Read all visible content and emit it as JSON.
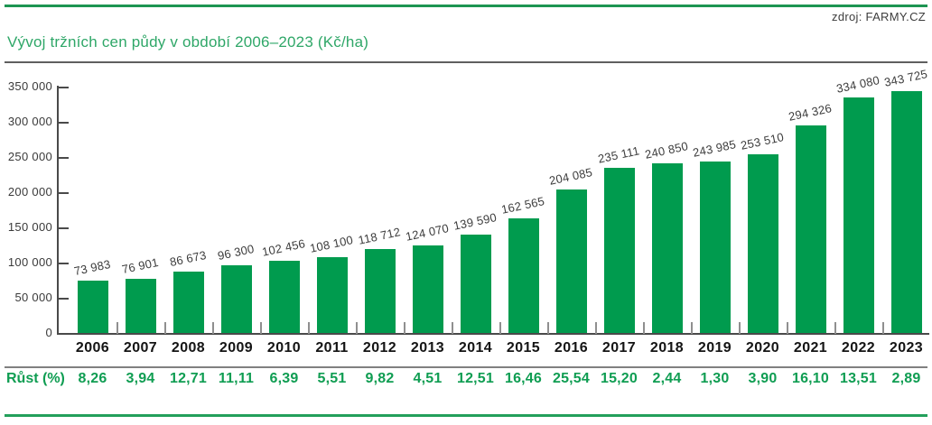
{
  "header": {
    "source": "zdroj: FARMY.CZ",
    "title": "Vývoj tržních cen půdy v období 2006–2023 (Kč/ha)"
  },
  "colors": {
    "bar_green": "#009b4e",
    "title_green": "#2fa768",
    "growth_green": "#0f9d52",
    "top_rule_green": "#1d9552",
    "bottom_rule_green": "#23a05b",
    "axis_gray": "#4a4a4a",
    "value_text": "#3d3d3d"
  },
  "chart_data": {
    "type": "bar",
    "title": "Vývoj tržních cen půdy v období 2006–2023 (Kč/ha)",
    "source": "zdroj: FARMY.CZ",
    "categories": [
      "2006",
      "2007",
      "2008",
      "2009",
      "2010",
      "2011",
      "2012",
      "2013",
      "2014",
      "2015",
      "2016",
      "2017",
      "2018",
      "2019",
      "2020",
      "2021",
      "2022",
      "2023"
    ],
    "values": [
      73983,
      76901,
      86673,
      96300,
      102456,
      108100,
      118712,
      124070,
      139590,
      162565,
      204085,
      235111,
      240850,
      243985,
      253510,
      294326,
      334080,
      343725
    ],
    "value_labels": [
      "73 983",
      "76 901",
      "86 673",
      "96 300",
      "102 456",
      "108 100",
      "118 712",
      "124 070",
      "139 590",
      "162 565",
      "204 085",
      "235 111",
      "240 850",
      "243 985",
      "253 510",
      "294 326",
      "334 080",
      "343 725"
    ],
    "growth_row_label": "Růst (%)",
    "growth_pct": [
      8.26,
      3.94,
      12.71,
      11.11,
      6.39,
      5.51,
      9.82,
      4.51,
      12.51,
      16.46,
      25.54,
      15.2,
      2.44,
      1.3,
      3.9,
      16.1,
      13.51,
      2.89
    ],
    "growth_labels": [
      "8,26",
      "3,94",
      "12,71",
      "11,11",
      "6,39",
      "5,51",
      "9,82",
      "4,51",
      "12,51",
      "16,46",
      "25,54",
      "15,20",
      "2,44",
      "1,30",
      "3,90",
      "16,10",
      "13,51",
      "2,89"
    ],
    "xlabel": "",
    "ylabel": "",
    "ylim": [
      0,
      350000
    ],
    "ytick_step": 50000,
    "ytick_labels": [
      "0",
      "50 000",
      "100 000",
      "150 000",
      "200 000",
      "250 000",
      "300 000",
      "350 000"
    ],
    "grid": false,
    "legend": "none"
  }
}
